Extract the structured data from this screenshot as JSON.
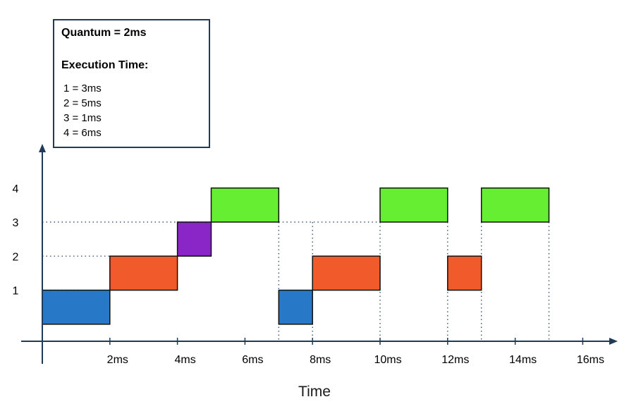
{
  "legend": {
    "quantum": "Quantum = 2ms",
    "heading": "Execution Time:",
    "items": [
      "1 = 3ms",
      "2 = 5ms",
      "3 = 1ms",
      "4 = 6ms"
    ]
  },
  "chart_data": {
    "type": "bar",
    "xlabel": "Time",
    "ylabel": "",
    "xlim": [
      0,
      16.5
    ],
    "ylim": [
      0,
      5.2
    ],
    "x_ticks": [
      2,
      4,
      6,
      8,
      10,
      12,
      14,
      16
    ],
    "x_tick_labels": [
      "2ms",
      "4ms",
      "6ms",
      "8ms",
      "10ms",
      "12ms",
      "14ms",
      "16ms"
    ],
    "y_ticks": [
      1,
      2,
      3,
      4
    ],
    "y_tick_labels": [
      "1",
      "2",
      "3",
      "4"
    ],
    "segments": [
      {
        "process": 1,
        "start": 0,
        "end": 2,
        "color": "#2878c8"
      },
      {
        "process": 2,
        "start": 2,
        "end": 4,
        "color": "#f15a2b"
      },
      {
        "process": 3,
        "start": 4,
        "end": 5,
        "color": "#8a26c8"
      },
      {
        "process": 4,
        "start": 5,
        "end": 7,
        "color": "#66ee33"
      },
      {
        "process": 1,
        "start": 7,
        "end": 8,
        "color": "#2878c8"
      },
      {
        "process": 2,
        "start": 8,
        "end": 10,
        "color": "#f15a2b"
      },
      {
        "process": 4,
        "start": 10,
        "end": 12,
        "color": "#66ee33"
      },
      {
        "process": 2,
        "start": 12,
        "end": 13,
        "color": "#f15a2b"
      },
      {
        "process": 4,
        "start": 13,
        "end": 15,
        "color": "#66ee33"
      }
    ],
    "grid": false
  }
}
